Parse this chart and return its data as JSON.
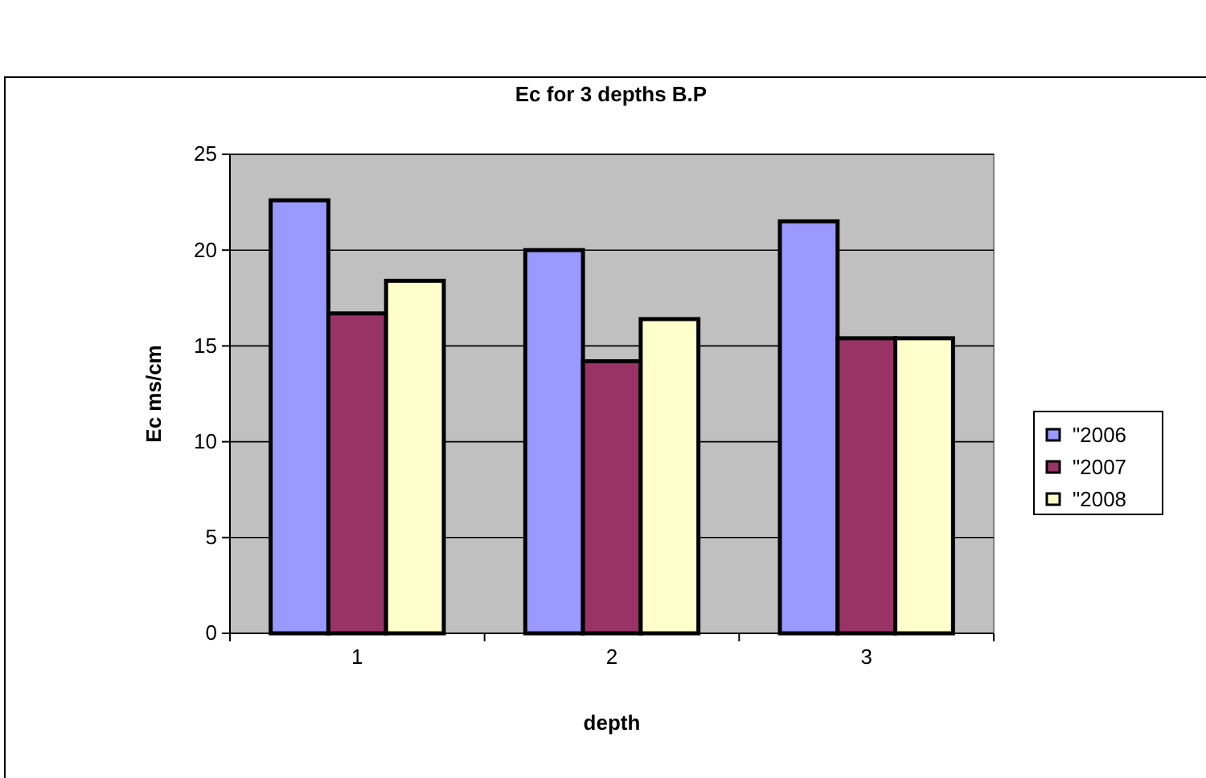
{
  "chart_data": {
    "type": "bar",
    "title": "Ec for 3 depths B.P",
    "xlabel": "depth",
    "ylabel": "Ec ms/cm",
    "categories": [
      "1",
      "2",
      "3"
    ],
    "series": [
      {
        "name": "\"2006",
        "color": "#9999ff",
        "values": [
          22.6,
          20.0,
          21.5
        ]
      },
      {
        "name": "\"2007",
        "color": "#993366",
        "values": [
          16.7,
          14.2,
          15.4
        ]
      },
      {
        "name": "\"2008",
        "color": "#ffffcc",
        "values": [
          18.4,
          16.4,
          15.4
        ]
      }
    ],
    "ylim": [
      0,
      25
    ],
    "yticks": [
      0,
      5,
      10,
      15,
      20,
      25
    ],
    "grid": "y",
    "legend": "right"
  }
}
